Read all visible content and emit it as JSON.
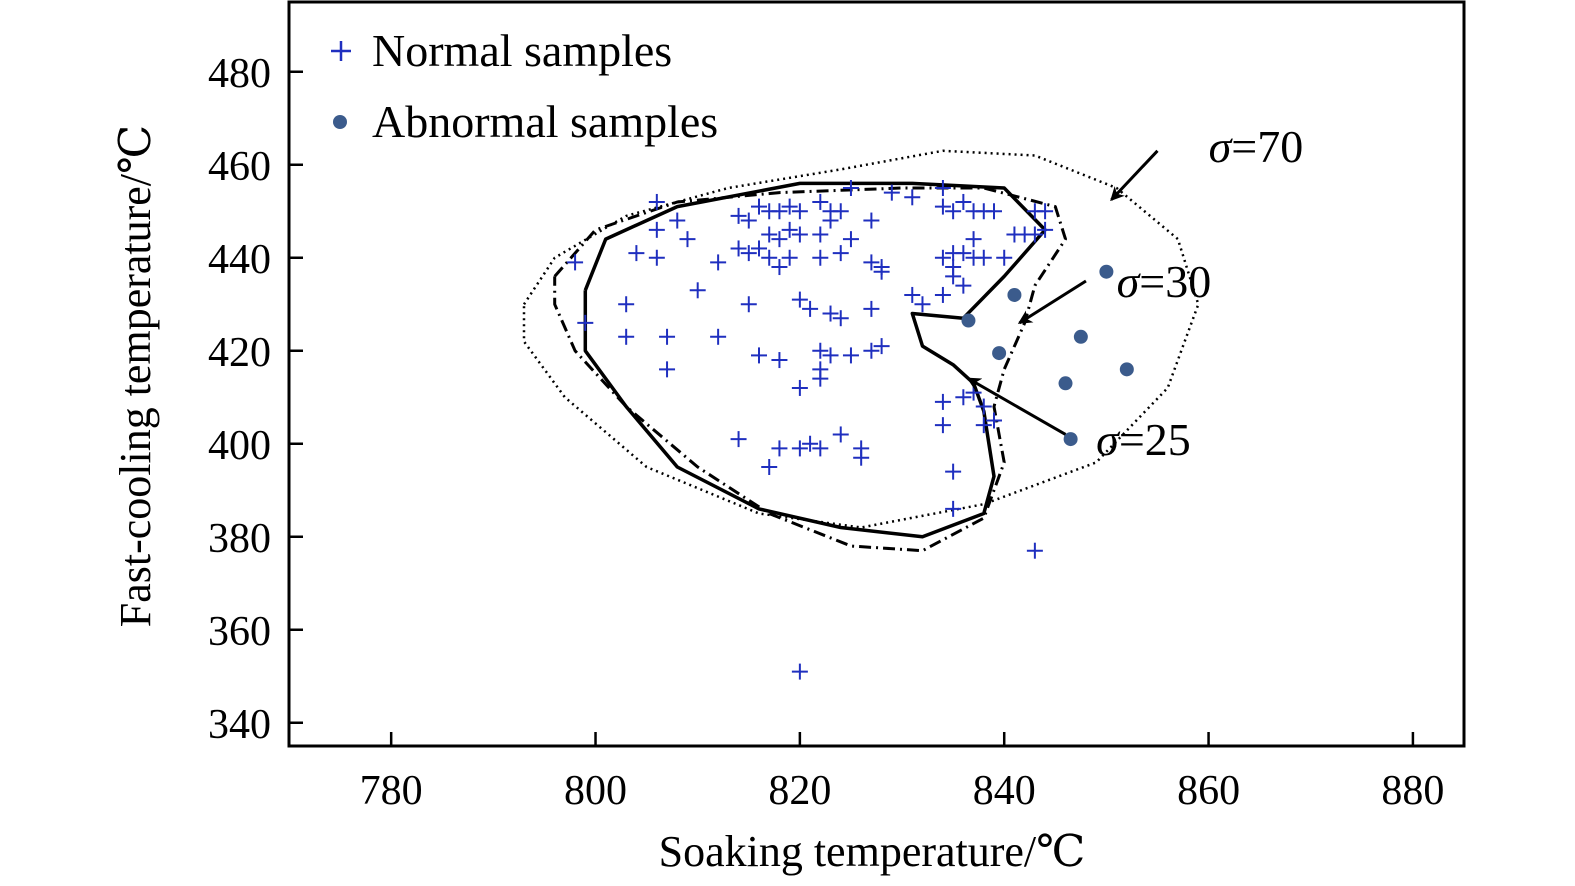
{
  "chart_data": {
    "type": "scatter",
    "title": "",
    "xlabel": "Soaking temperature/℃",
    "ylabel": "Fast-cooling temperature/℃",
    "xlim": [
      770,
      885
    ],
    "ylim": [
      335,
      495
    ],
    "xticks": [
      780,
      800,
      820,
      840,
      860,
      880
    ],
    "yticks": [
      340,
      360,
      380,
      400,
      420,
      440,
      460,
      480
    ],
    "grid": false,
    "legend_position": "top-left",
    "colors": {
      "normal": "#1f2fbf",
      "abnormal": "#3b5b8c",
      "axes": "#000000"
    },
    "series": [
      {
        "name": "Normal samples",
        "marker": "plus",
        "points": [
          [
            798,
            439
          ],
          [
            799,
            426
          ],
          [
            803,
            430
          ],
          [
            803,
            423
          ],
          [
            804,
            441
          ],
          [
            806,
            452
          ],
          [
            806,
            446
          ],
          [
            806,
            440
          ],
          [
            807,
            416
          ],
          [
            807,
            423
          ],
          [
            808,
            448
          ],
          [
            809,
            444
          ],
          [
            810,
            433
          ],
          [
            812,
            439
          ],
          [
            812,
            423
          ],
          [
            814,
            449
          ],
          [
            814,
            442
          ],
          [
            814,
            401
          ],
          [
            815,
            448
          ],
          [
            815,
            441
          ],
          [
            815,
            430
          ],
          [
            816,
            451
          ],
          [
            816,
            442
          ],
          [
            816,
            419
          ],
          [
            817,
            450
          ],
          [
            817,
            445
          ],
          [
            817,
            440
          ],
          [
            817,
            395
          ],
          [
            818,
            450
          ],
          [
            818,
            444
          ],
          [
            818,
            438
          ],
          [
            818,
            418
          ],
          [
            818,
            399
          ],
          [
            819,
            451
          ],
          [
            819,
            446
          ],
          [
            819,
            440
          ],
          [
            820,
            450
          ],
          [
            820,
            445
          ],
          [
            820,
            412
          ],
          [
            820,
            399
          ],
          [
            820,
            431
          ],
          [
            821,
            429
          ],
          [
            821,
            400
          ],
          [
            822,
            452
          ],
          [
            822,
            445
          ],
          [
            822,
            440
          ],
          [
            822,
            420
          ],
          [
            822,
            416
          ],
          [
            822,
            414
          ],
          [
            822,
            399
          ],
          [
            823,
            450
          ],
          [
            823,
            448
          ],
          [
            823,
            428
          ],
          [
            823,
            419
          ],
          [
            824,
            450
          ],
          [
            824,
            441
          ],
          [
            824,
            427
          ],
          [
            824,
            402
          ],
          [
            825,
            455
          ],
          [
            825,
            444
          ],
          [
            825,
            419
          ],
          [
            826,
            399
          ],
          [
            826,
            397
          ],
          [
            827,
            448
          ],
          [
            827,
            439
          ],
          [
            827,
            429
          ],
          [
            827,
            420
          ],
          [
            828,
            437
          ],
          [
            828,
            438
          ],
          [
            828,
            421
          ],
          [
            829,
            454
          ],
          [
            831,
            453
          ],
          [
            831,
            432
          ],
          [
            832,
            430
          ],
          [
            834,
            455
          ],
          [
            834,
            451
          ],
          [
            834,
            440
          ],
          [
            834,
            432
          ],
          [
            834,
            409
          ],
          [
            834,
            404
          ],
          [
            835,
            450
          ],
          [
            835,
            441
          ],
          [
            835,
            438
          ],
          [
            835,
            436
          ],
          [
            835,
            394
          ],
          [
            835,
            386
          ],
          [
            836,
            452
          ],
          [
            836,
            441
          ],
          [
            836,
            434
          ],
          [
            836,
            410
          ],
          [
            837,
            450
          ],
          [
            837,
            444
          ],
          [
            837,
            440
          ],
          [
            837,
            411
          ],
          [
            838,
            450
          ],
          [
            838,
            440
          ],
          [
            838,
            408
          ],
          [
            838,
            404
          ],
          [
            839,
            450
          ],
          [
            839,
            405
          ],
          [
            840,
            440
          ],
          [
            841,
            445
          ],
          [
            842,
            445
          ],
          [
            843,
            445
          ],
          [
            843,
            450
          ],
          [
            844,
            450
          ],
          [
            844,
            446
          ],
          [
            843,
            377
          ],
          [
            820,
            351
          ]
        ]
      },
      {
        "name": "Abnormal samples",
        "marker": "dot",
        "points": [
          [
            836.5,
            426.5
          ],
          [
            839.5,
            419.5
          ],
          [
            841,
            432
          ],
          [
            846,
            413
          ],
          [
            846.5,
            401
          ],
          [
            847.5,
            423
          ],
          [
            850,
            437
          ],
          [
            852,
            416
          ]
        ]
      }
    ],
    "contours": [
      {
        "label": "σ=70",
        "style": "dotted",
        "points": [
          [
            793,
            430
          ],
          [
            796,
            440
          ],
          [
            803,
            449
          ],
          [
            813,
            455
          ],
          [
            824,
            459
          ],
          [
            834,
            463
          ],
          [
            843,
            462
          ],
          [
            851,
            455
          ],
          [
            857,
            444
          ],
          [
            859,
            430
          ],
          [
            856,
            412
          ],
          [
            849,
            396
          ],
          [
            838,
            387
          ],
          [
            826,
            382
          ],
          [
            816,
            385
          ],
          [
            805,
            395
          ],
          [
            797,
            410
          ],
          [
            793,
            422
          ],
          [
            793,
            430
          ]
        ],
        "arrow_from": [
          855,
          463
        ],
        "arrow_to": [
          850.5,
          452.5
        ],
        "label_at": [
          860,
          464
        ]
      },
      {
        "label": "σ=30",
        "style": "dash-dot",
        "points": [
          [
            796,
            436
          ],
          [
            800,
            446
          ],
          [
            808,
            452
          ],
          [
            818,
            454
          ],
          [
            830,
            455
          ],
          [
            838,
            455
          ],
          [
            845,
            451
          ],
          [
            846,
            444
          ],
          [
            843,
            434
          ],
          [
            842,
            426
          ],
          [
            840,
            416
          ],
          [
            839,
            408
          ],
          [
            840,
            396
          ],
          [
            838,
            384
          ],
          [
            832,
            377
          ],
          [
            825,
            378
          ],
          [
            817,
            385
          ],
          [
            810,
            395
          ],
          [
            803,
            408
          ],
          [
            798,
            420
          ],
          [
            796,
            430
          ],
          [
            796,
            436
          ]
        ],
        "arrow_from": [
          848,
          435
        ],
        "arrow_to": [
          841.5,
          426
        ],
        "label_at": [
          851,
          435
        ]
      },
      {
        "label": "σ=25",
        "style": "solid",
        "points": [
          [
            799,
            433
          ],
          [
            801,
            444
          ],
          [
            808,
            451
          ],
          [
            820,
            456
          ],
          [
            831,
            456
          ],
          [
            840,
            455
          ],
          [
            844,
            446
          ],
          [
            840,
            436
          ],
          [
            836,
            427
          ],
          [
            831,
            428
          ],
          [
            832,
            421
          ],
          [
            835,
            417
          ],
          [
            837,
            413
          ],
          [
            838,
            407
          ],
          [
            839,
            393
          ],
          [
            838,
            385
          ],
          [
            832,
            380
          ],
          [
            824,
            382
          ],
          [
            816,
            386
          ],
          [
            808,
            395
          ],
          [
            803,
            408
          ],
          [
            799,
            420
          ],
          [
            799,
            433
          ]
        ],
        "arrow_from": [
          846,
          402
        ],
        "arrow_to": [
          836.5,
          414
        ],
        "label_at": [
          849,
          401
        ]
      }
    ],
    "annotations": [
      "σ=70",
      "σ=30",
      "σ=25"
    ]
  }
}
